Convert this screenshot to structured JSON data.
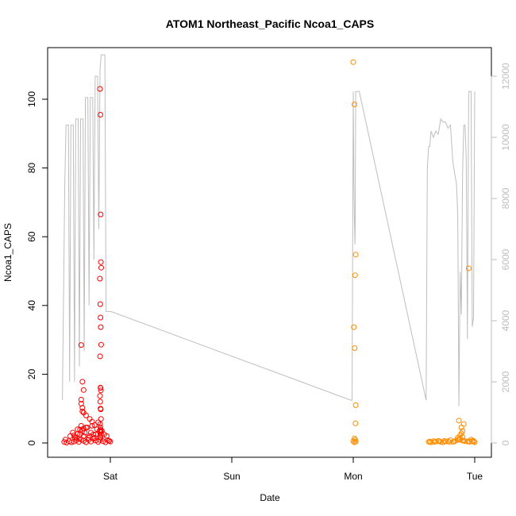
{
  "chart_data": {
    "type": "scatter",
    "title": "ATOM1 Northeast_Pacific Ncoa1_CAPS",
    "xlabel": "Date",
    "ylabel": "Ncoa1_CAPS",
    "x_ticks": [
      {
        "label": "Sat",
        "day": 1
      },
      {
        "label": "Sun",
        "day": 2
      },
      {
        "label": "Mon",
        "day": 3
      },
      {
        "label": "Tue",
        "day": 4
      }
    ],
    "xlim_days": [
      0.55,
      4.08
    ],
    "ylim": [
      0,
      110
    ],
    "y_ticks": [
      0,
      20,
      40,
      60,
      80,
      100
    ],
    "y2_ticks": [
      0,
      2000,
      4000,
      6000,
      8000,
      10000,
      12000
    ],
    "y2lim": [
      0,
      12700
    ],
    "grid": false,
    "colors": {
      "series_red": "#ff0000",
      "series_orange": "#ff8c00",
      "secondary_line": "#bebebe",
      "secondary_axis": "#bdbdbd"
    },
    "series": [
      {
        "color": "#ff0000",
        "x_days": [
          0.62,
          0.64,
          0.66,
          0.68,
          0.7,
          0.72,
          0.74,
          0.76,
          0.78,
          0.8,
          0.82,
          0.84,
          0.86,
          0.88,
          0.9,
          0.92,
          0.94,
          0.96,
          0.98,
          1.0,
          0.63,
          0.67,
          0.71,
          0.75,
          0.79,
          0.83,
          0.87,
          0.91,
          0.95,
          0.99,
          0.69,
          0.73,
          0.77,
          0.81,
          0.85,
          0.89,
          0.93,
          0.97,
          0.76,
          0.8,
          0.84,
          0.88,
          0.9,
          0.92,
          0.78,
          0.82,
          0.86,
          0.73,
          0.75,
          0.78,
          0.76,
          0.77,
          0.78,
          0.76,
          0.76,
          0.77,
          0.77,
          0.78,
          0.8,
          0.83,
          0.85,
          0.87,
          0.7,
          0.72,
          0.74,
          0.915,
          0.918,
          0.92,
          0.922,
          0.925,
          0.914,
          0.917,
          0.919,
          0.921,
          0.924,
          0.916,
          0.918,
          0.92,
          0.922,
          0.915,
          0.917,
          0.919,
          0.921,
          0.923,
          0.916,
          0.918,
          0.92,
          0.922,
          0.924,
          0.917,
          0.915
        ],
        "y": [
          0.3,
          0.1,
          0.5,
          0.2,
          0.4,
          0.8,
          0.3,
          1.0,
          0.6,
          0.2,
          0.9,
          0.4,
          1.2,
          0.7,
          0.3,
          1.5,
          0.5,
          0.2,
          0.8,
          0.4,
          1.0,
          2.0,
          1.5,
          2.5,
          3.0,
          2.0,
          1.5,
          3.5,
          2.5,
          0.6,
          3.0,
          4.0,
          3.5,
          4.5,
          5.0,
          4.0,
          3.5,
          2.0,
          5.0,
          4.5,
          3.0,
          2.5,
          6.0,
          3.5,
          2.0,
          1.5,
          2.5,
          2.6,
          3.9,
          4.2,
          28.5,
          17.8,
          15.4,
          12.6,
          11.4,
          10.2,
          9.2,
          8.8,
          8.0,
          7.0,
          6.2,
          5.2,
          2.2,
          1.6,
          1.2,
          103.0,
          95.5,
          66.5,
          52.6,
          51.0,
          47.8,
          40.4,
          36.5,
          33.7,
          28.6,
          25.2,
          16.1,
          16.0,
          15.3,
          13.7,
          12.0,
          10.0,
          9.8,
          7.0,
          5.5,
          4.5,
          3.8,
          3.2,
          2.5,
          1.8,
          0.9
        ]
      },
      {
        "color": "#ff8c00",
        "x_days": [
          3.0,
          3.01,
          3.02,
          3.015,
          3.005,
          3.012,
          3.02,
          3.018,
          3.01,
          3.016,
          3.0,
          3.02,
          3.01,
          3.62,
          3.64,
          3.66,
          3.68,
          3.7,
          3.72,
          3.74,
          3.76,
          3.78,
          3.8,
          3.82,
          3.84,
          3.86,
          3.88,
          3.9,
          3.92,
          3.94,
          3.96,
          3.98,
          4.0,
          3.63,
          3.67,
          3.71,
          3.75,
          3.79,
          3.83,
          3.87,
          3.91,
          3.95,
          3.99,
          3.86,
          3.88,
          3.9,
          3.89,
          3.91,
          3.87,
          3.89,
          3.9,
          3.95,
          3.97,
          3.99
        ],
        "y": [
          110.8,
          98.5,
          54.8,
          48.8,
          33.7,
          27.6,
          11.0,
          5.7,
          1.3,
          0.9,
          0.5,
          0.4,
          0.2,
          0.3,
          0.2,
          0.5,
          0.4,
          0.6,
          0.3,
          0.2,
          0.4,
          0.5,
          0.8,
          0.3,
          0.6,
          1.0,
          1.2,
          0.7,
          0.5,
          0.4,
          0.3,
          0.6,
          0.2,
          0.4,
          0.3,
          0.5,
          0.6,
          0.3,
          0.4,
          0.9,
          0.7,
          0.5,
          0.4,
          1.5,
          2.2,
          3.5,
          4.5,
          5.5,
          6.5,
          2.8,
          1.8,
          50.8,
          1.0,
          0.6
        ]
      }
    ],
    "secondary_line": {
      "color": "#bebebe",
      "x_days": [
        0.605,
        0.625,
        0.635,
        0.645,
        0.655,
        0.665,
        0.675,
        0.685,
        0.695,
        0.705,
        0.715,
        0.725,
        0.735,
        0.745,
        0.755,
        0.765,
        0.775,
        0.785,
        0.795,
        0.805,
        0.815,
        0.825,
        0.835,
        0.845,
        0.855,
        0.865,
        0.875,
        0.885,
        0.895,
        0.905,
        0.915,
        0.925,
        0.935,
        0.945,
        0.955,
        0.965,
        0.975,
        0.985,
        0.995,
        1.005,
        2.98,
        2.99,
        3.0,
        3.005,
        3.01,
        3.015,
        3.02,
        3.025,
        3.03,
        3.04,
        3.05,
        3.6,
        3.61,
        3.62,
        3.63,
        3.64,
        3.66,
        3.68,
        3.7,
        3.72,
        3.74,
        3.75,
        3.76,
        3.78,
        3.8,
        3.82,
        3.84,
        3.85,
        3.86,
        3.87,
        3.88,
        3.89,
        3.9,
        3.91,
        3.92,
        3.93,
        3.94,
        3.95,
        3.96,
        3.97,
        3.98,
        3.99,
        4.0
      ],
      "y": [
        1400,
        8500,
        10400,
        10400,
        10400,
        2000,
        10400,
        10400,
        10400,
        2000,
        10600,
        10600,
        10600,
        2500,
        10600,
        10600,
        10600,
        3000,
        11300,
        11300,
        11300,
        4500,
        11300,
        11300,
        11300,
        6000,
        12000,
        12000,
        12000,
        7000,
        12200,
        12700,
        12700,
        12700,
        12700,
        4300,
        4300,
        4300,
        4300,
        4300,
        1400,
        1400,
        11500,
        8500,
        7200,
        6500,
        11500,
        11500,
        11500,
        11500,
        11500,
        1400,
        9000,
        9700,
        9700,
        10200,
        10000,
        10200,
        10100,
        10600,
        10500,
        10500,
        10500,
        10300,
        10400,
        9200,
        8700,
        8500,
        7500,
        1200,
        5600,
        4200,
        8800,
        10400,
        10400,
        9300,
        3400,
        11500,
        11500,
        11500,
        3800,
        4100,
        11500
      ]
    }
  }
}
